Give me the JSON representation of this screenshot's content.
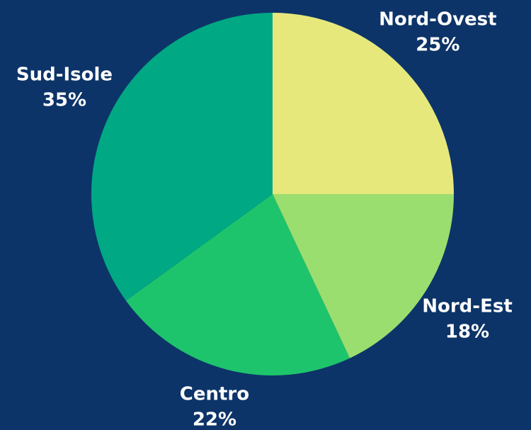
{
  "chart_data": {
    "type": "pie",
    "categories": [
      "Nord-Ovest",
      "Nord-Est",
      "Centro",
      "Sud-Isole"
    ],
    "values": [
      25,
      18,
      22,
      35
    ],
    "value_labels": [
      "25%",
      "18%",
      "22%",
      "35%"
    ],
    "colors": [
      "#e6e87c",
      "#9ade6f",
      "#1ec46c",
      "#00a884"
    ]
  }
}
